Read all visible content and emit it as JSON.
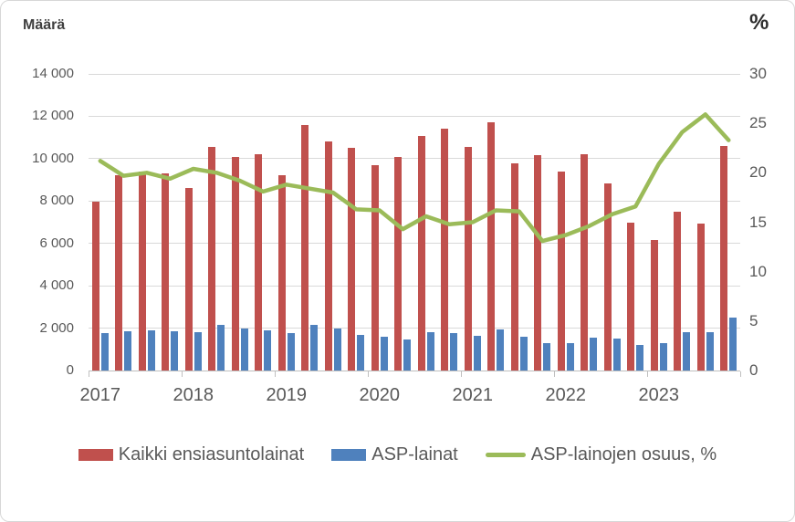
{
  "chart_data": {
    "type": "bar-line-combo",
    "left_axis_title": "Määrä",
    "right_axis_title": "%",
    "categories": [
      "2017Q1",
      "2017Q2",
      "2017Q3",
      "2017Q4",
      "2018Q1",
      "2018Q2",
      "2018Q3",
      "2018Q4",
      "2019Q1",
      "2019Q2",
      "2019Q3",
      "2019Q4",
      "2020Q1",
      "2020Q2",
      "2020Q3",
      "2020Q4",
      "2021Q1",
      "2021Q2",
      "2021Q3",
      "2021Q4",
      "2022Q1",
      "2022Q2",
      "2022Q3",
      "2022Q4",
      "2023Q1",
      "2023Q2",
      "2023Q3",
      "2023Q4"
    ],
    "year_labels": [
      "2017",
      "2018",
      "2019",
      "2020",
      "2021",
      "2022",
      "2023"
    ],
    "series": [
      {
        "name": "Kaikki ensiasuntolainat",
        "type": "bar",
        "axis": "left",
        "color": "#C0504D",
        "values": [
          7950,
          9200,
          9400,
          9300,
          8600,
          10550,
          10100,
          10200,
          9200,
          11600,
          10800,
          10500,
          9700,
          10100,
          11050,
          11400,
          10550,
          11700,
          9800,
          10150,
          9400,
          10200,
          8850,
          7000,
          6150,
          7500,
          6950,
          10600
        ]
      },
      {
        "name": "ASP-lainat",
        "type": "bar",
        "axis": "left",
        "color": "#4F81BD",
        "values": [
          1750,
          1850,
          1900,
          1850,
          1800,
          2150,
          2000,
          1900,
          1750,
          2150,
          2000,
          1700,
          1600,
          1450,
          1800,
          1750,
          1650,
          1950,
          1600,
          1300,
          1300,
          1550,
          1500,
          1200,
          1300,
          1800,
          1800,
          2500
        ]
      },
      {
        "name": "ASP-lainojen osuus, %",
        "type": "line",
        "axis": "right",
        "color": "#9BBB59",
        "values": [
          21.2,
          19.7,
          20.0,
          19.4,
          20.4,
          20.0,
          19.2,
          18.1,
          18.8,
          18.4,
          18.0,
          16.3,
          16.2,
          14.3,
          15.6,
          14.8,
          15.0,
          16.2,
          16.1,
          13.1,
          13.7,
          14.6,
          15.8,
          16.6,
          20.9,
          24.1,
          25.9,
          23.3
        ]
      }
    ],
    "left_axis": {
      "min": 0,
      "max": 14000,
      "step": 2000,
      "tick_labels_top_down": [
        "14 000",
        "12 000",
        "10 000",
        "8 000",
        "6 000",
        "4 000",
        "2 000",
        "0"
      ]
    },
    "right_axis": {
      "min": 0,
      "max": 30,
      "step": 5,
      "tick_labels_top_down": [
        "30",
        "25",
        "20",
        "15",
        "10",
        "5",
        "0"
      ]
    },
    "grid": true,
    "legend_position": "bottom",
    "colors": {
      "gridline": "#D9D9D9",
      "axis_line": "#BFBFBF",
      "tick_text": "#595959",
      "title_text": "#404040"
    }
  }
}
